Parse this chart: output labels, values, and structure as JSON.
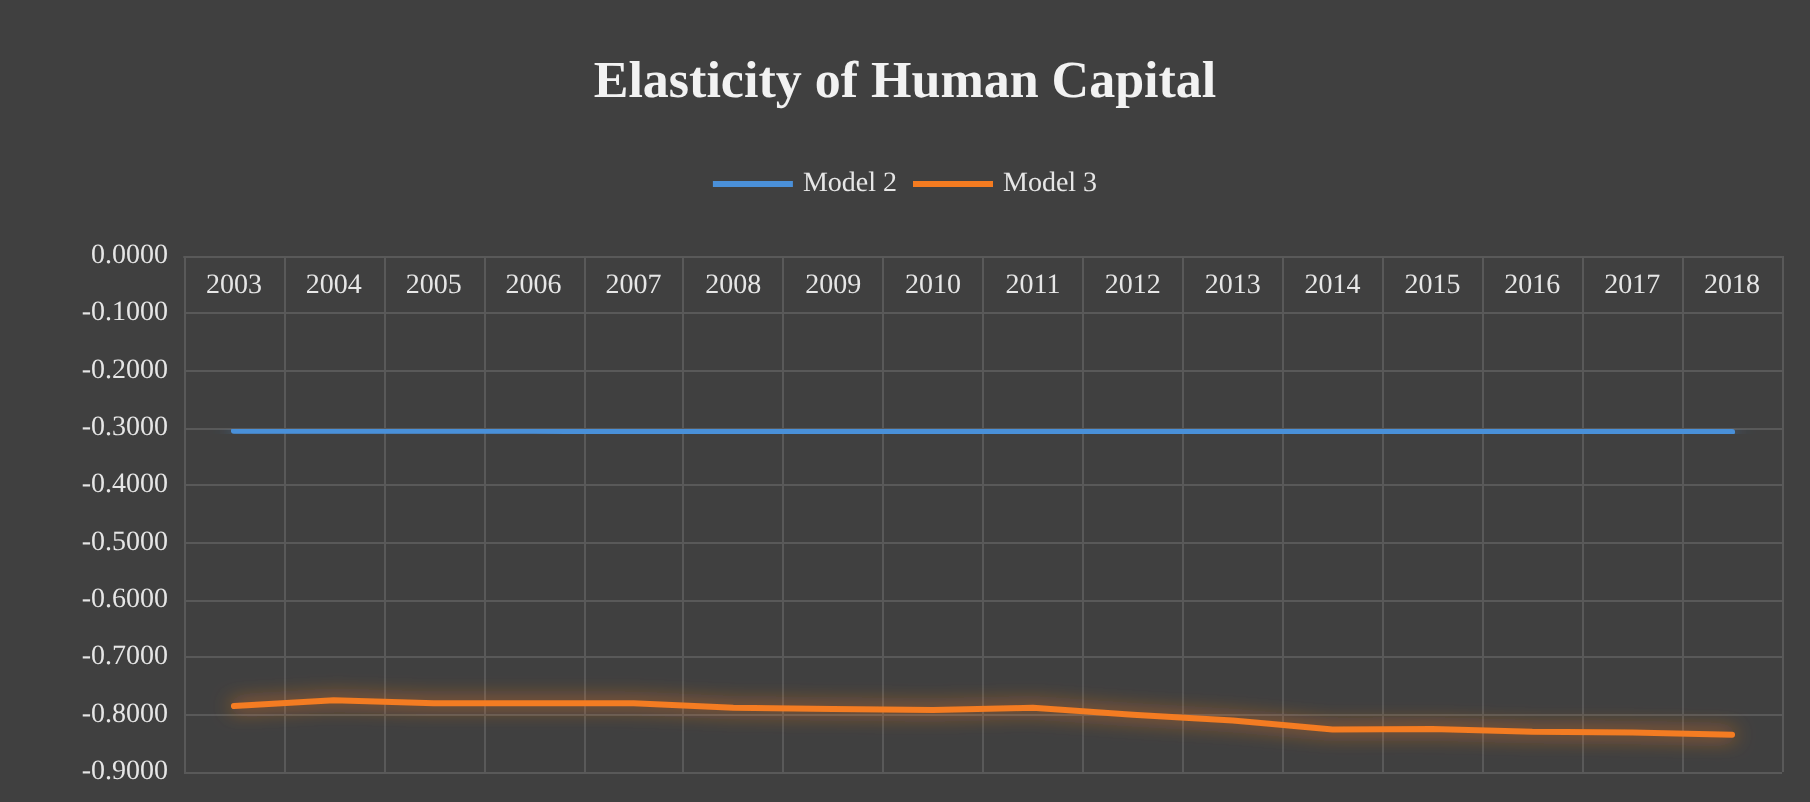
{
  "chart_data": {
    "type": "line",
    "title": "Elasticity of Human Capital",
    "categories": [
      "2003",
      "2004",
      "2005",
      "2006",
      "2007",
      "2008",
      "2009",
      "2010",
      "2011",
      "2012",
      "2013",
      "2014",
      "2015",
      "2016",
      "2017",
      "2018"
    ],
    "series": [
      {
        "name": "Model 2",
        "color": "#4a90d9",
        "values": [
          -0.305,
          -0.305,
          -0.305,
          -0.305,
          -0.306,
          -0.306,
          -0.306,
          -0.306,
          -0.306,
          -0.306,
          -0.306,
          -0.307,
          -0.307,
          -0.307,
          -0.307,
          -0.307
        ]
      },
      {
        "name": "Model 3",
        "color": "#f47b20",
        "values": [
          -0.785,
          -0.775,
          -0.78,
          -0.78,
          -0.78,
          -0.788,
          -0.79,
          -0.792,
          -0.788,
          -0.8,
          -0.81,
          -0.826,
          -0.825,
          -0.83,
          -0.831,
          -0.835
        ]
      }
    ],
    "ylim": [
      -0.9,
      0
    ],
    "yticks": [
      {
        "value": 0,
        "label": "0.0000"
      },
      {
        "value": -0.1,
        "label": "-0.1000"
      },
      {
        "value": -0.2,
        "label": "-0.2000"
      },
      {
        "value": -0.3,
        "label": "-0.3000"
      },
      {
        "value": -0.4,
        "label": "-0.4000"
      },
      {
        "value": -0.5,
        "label": "-0.5000"
      },
      {
        "value": -0.6,
        "label": "-0.6000"
      },
      {
        "value": -0.7,
        "label": "-0.7000"
      },
      {
        "value": -0.8,
        "label": "-0.8000"
      },
      {
        "value": -0.9,
        "label": "-0.9000"
      }
    ],
    "grid": true,
    "legend": "top",
    "marker": "none",
    "line_style": "solid"
  }
}
